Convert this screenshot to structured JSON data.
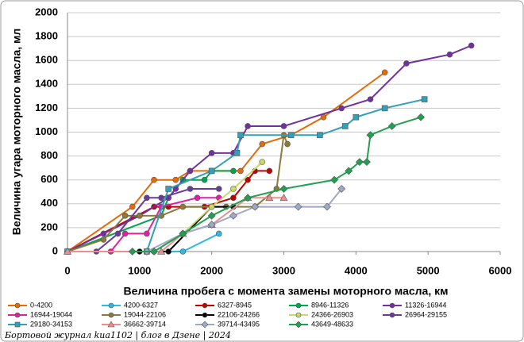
{
  "chart_data": {
    "type": "line",
    "ylabel": "Величина угара моторного масла, мл",
    "xlabel": "Величина пробега с момента замены моторного масла, км",
    "footer": "Бортовой журнал kua1102 | блог в Дзене | 2024",
    "xlim": [
      0,
      6000
    ],
    "xticks": [
      0,
      1000,
      2000,
      3000,
      4000,
      5000,
      6000
    ],
    "ylim": [
      0,
      2000
    ],
    "yticks": [
      0,
      200,
      400,
      600,
      800,
      1000,
      1200,
      1400,
      1600,
      1800,
      2000
    ],
    "grid": true,
    "series": [
      {
        "name": "0-4200",
        "color": "#e36c0a",
        "marker": "circle",
        "x": [
          0,
          900,
          1200,
          1500,
          1700,
          2000,
          2400,
          2700,
          3100,
          3550,
          4400
        ],
        "values": [
          0,
          375,
          600,
          600,
          675,
          675,
          675,
          900,
          975,
          1125,
          1500
        ]
      },
      {
        "name": "4200-6327",
        "color": "#31b6e7",
        "marker": "circle",
        "x": [
          0,
          1600,
          2100
        ],
        "values": [
          0,
          0,
          150
        ]
      },
      {
        "name": "6327-8945",
        "color": "#c00000",
        "marker": "circle",
        "x": [
          0,
          1200,
          1400,
          1900,
          2300,
          2500,
          2600,
          2800
        ],
        "values": [
          0,
          375,
          375,
          375,
          450,
          600,
          675,
          675
        ]
      },
      {
        "name": "8946-11326",
        "color": "#00a550",
        "marker": "circle",
        "x": [
          0,
          1300,
          1400,
          1600,
          1900,
          2000,
          2300
        ],
        "values": [
          0,
          300,
          450,
          600,
          600,
          675,
          675
        ]
      },
      {
        "name": "11326-16944",
        "color": "#7030a0",
        "marker": "circle",
        "x": [
          0,
          500,
          1000,
          1400,
          1500,
          1700,
          2000,
          2300,
          2500,
          3000,
          3800,
          4200,
          4700,
          5300,
          5600
        ],
        "values": [
          0,
          150,
          300,
          450,
          525,
          675,
          825,
          825,
          1050,
          1050,
          1200,
          1275,
          1575,
          1650,
          1725
        ]
      },
      {
        "name": "16944-19044",
        "color": "#e020a0",
        "marker": "circle",
        "x": [
          0,
          600,
          800,
          1100,
          1300,
          1800,
          2100
        ],
        "values": [
          0,
          0,
          150,
          150,
          375,
          450,
          450
        ]
      },
      {
        "name": "19044-22106",
        "color": "#8c7a3c",
        "marker": "circle",
        "x": [
          0,
          500,
          800,
          1000,
          1300,
          1600,
          2200,
          2600,
          2900,
          3000,
          3050
        ],
        "values": [
          0,
          100,
          300,
          300,
          300,
          375,
          375,
          375,
          525,
          975,
          900
        ]
      },
      {
        "name": "22106-24266",
        "color": "#000000",
        "marker": "circle",
        "x": [
          1000,
          1400,
          2000,
          2300
        ],
        "values": [
          0,
          0,
          375,
          375
        ]
      },
      {
        "name": "24366-26903",
        "color": "#c8d86a",
        "marker": "circle",
        "x": [
          1200,
          1600,
          2000,
          2300,
          2700
        ],
        "values": [
          0,
          150,
          375,
          525,
          750
        ]
      },
      {
        "name": "26964-29155",
        "color": "#6a3a99",
        "marker": "circle",
        "x": [
          0,
          400,
          700,
          1100,
          1300,
          1700,
          2100
        ],
        "values": [
          0,
          0,
          150,
          450,
          450,
          525,
          525
        ]
      },
      {
        "name": "29180-34153",
        "color": "#31a0b8",
        "marker": "square",
        "x": [
          0,
          1100,
          1400,
          2000,
          2350,
          2400,
          3100,
          3500,
          3850,
          4000,
          4400,
          4950
        ],
        "values": [
          0,
          0,
          525,
          675,
          825,
          975,
          975,
          975,
          1050,
          1125,
          1200,
          1275
        ]
      },
      {
        "name": "36662-39714",
        "color": "#e89090",
        "marker": "triangle",
        "x": [
          0,
          1300,
          1600,
          2000,
          2500,
          2800,
          3000
        ],
        "values": [
          0,
          0,
          150,
          225,
          450,
          450,
          450
        ]
      },
      {
        "name": "39714-43495",
        "color": "#a0a8c8",
        "marker": "diamond",
        "x": [
          1100,
          1600,
          2000,
          2300,
          2600,
          3200,
          3600,
          3800
        ],
        "values": [
          0,
          150,
          225,
          300,
          375,
          375,
          375,
          525
        ]
      },
      {
        "name": "43649-48633",
        "color": "#20a050",
        "marker": "diamond",
        "x": [
          900,
          1200,
          1600,
          2000,
          2500,
          3000,
          3700,
          3900,
          4050,
          4150,
          4200,
          4500,
          4900
        ],
        "values": [
          0,
          0,
          150,
          300,
          450,
          525,
          600,
          675,
          750,
          750,
          975,
          1050,
          1125
        ]
      }
    ]
  }
}
